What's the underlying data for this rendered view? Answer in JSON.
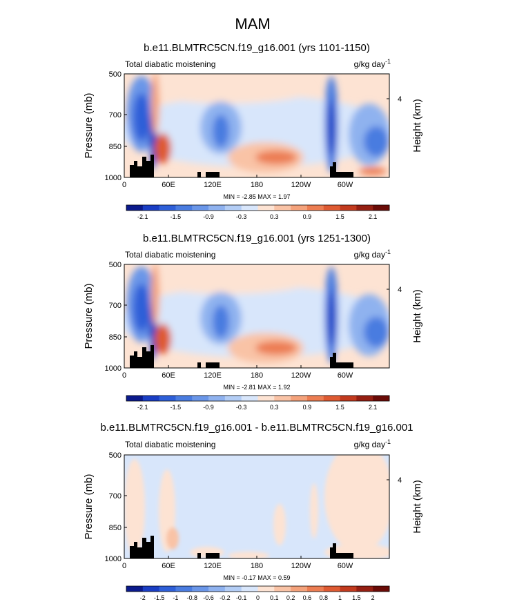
{
  "figure": {
    "title": "MAM"
  },
  "chart_data": [
    {
      "type": "heatmap",
      "title": "b.e11.BLMTRC5CN.f19_g16.001 (yrs 1101-1150)",
      "left_label": "Total diabatic moistening",
      "units": "g/kg day",
      "units_exp": "-1",
      "xlabel": "",
      "ylabel": "Pressure (mb)",
      "y2label": "Height (km)",
      "x_ticks": [
        "0",
        "60E",
        "120E",
        "180",
        "120W",
        "60W"
      ],
      "y_ticks": [
        "500",
        "700",
        "850",
        "1000"
      ],
      "y2_ticks": [
        "4"
      ],
      "ylim": [
        1000,
        500
      ],
      "stats": "MIN = -2.85  MAX = 1.97",
      "colorbar_labels": [
        "-2.1",
        "-1.5",
        "-0.9",
        "-0.3",
        "0.3",
        "0.9",
        "1.5",
        "2.1"
      ],
      "colorbar_colors": [
        "#0b1a8c",
        "#1a3ec4",
        "#2e5fd8",
        "#4a7ce0",
        "#6a96e8",
        "#8fb2ef",
        "#b3cdf5",
        "#d8e6fb",
        "#fde3d3",
        "#f9c3a6",
        "#f4a27b",
        "#ec7d52",
        "#de5a32",
        "#c23a1e",
        "#951f12",
        "#6a0b07"
      ]
    },
    {
      "type": "heatmap",
      "title": "b.e11.BLMTRC5CN.f19_g16.001 (yrs 1251-1300)",
      "left_label": "Total diabatic moistening",
      "units": "g/kg day",
      "units_exp": "-1",
      "xlabel": "",
      "ylabel": "Pressure (mb)",
      "y2label": "Height (km)",
      "x_ticks": [
        "0",
        "60E",
        "120E",
        "180",
        "120W",
        "60W"
      ],
      "y_ticks": [
        "500",
        "700",
        "850",
        "1000"
      ],
      "y2_ticks": [
        "4"
      ],
      "ylim": [
        1000,
        500
      ],
      "stats": "MIN = -2.81  MAX = 1.92",
      "colorbar_labels": [
        "-2.1",
        "-1.5",
        "-0.9",
        "-0.3",
        "0.3",
        "0.9",
        "1.5",
        "2.1"
      ],
      "colorbar_colors": [
        "#0b1a8c",
        "#1a3ec4",
        "#2e5fd8",
        "#4a7ce0",
        "#6a96e8",
        "#8fb2ef",
        "#b3cdf5",
        "#d8e6fb",
        "#fde3d3",
        "#f9c3a6",
        "#f4a27b",
        "#ec7d52",
        "#de5a32",
        "#c23a1e",
        "#951f12",
        "#6a0b07"
      ]
    },
    {
      "type": "heatmap",
      "title": "b.e11.BLMTRC5CN.f19_g16.001 - b.e11.BLMTRC5CN.f19_g16.001",
      "left_label": "Total diabatic moistening",
      "units": "g/kg day",
      "units_exp": "-1",
      "xlabel": "",
      "ylabel": "Pressure (mb)",
      "y2label": "Height (km)",
      "x_ticks": [
        "0",
        "60E",
        "120E",
        "180",
        "120W",
        "60W"
      ],
      "y_ticks": [
        "500",
        "700",
        "850",
        "1000"
      ],
      "y2_ticks": [
        "4"
      ],
      "ylim": [
        1000,
        500
      ],
      "stats": "MIN = -0.17  MAX =  0.59",
      "colorbar_labels": [
        "-2",
        "-1.5",
        "-1",
        "-0.8",
        "-0.6",
        "-0.2",
        "-0.1",
        "0",
        "0.1",
        "0.2",
        "0.6",
        "0.8",
        "1",
        "1.5",
        "2"
      ],
      "colorbar_colors": [
        "#0b1a8c",
        "#1a3ec4",
        "#2e5fd8",
        "#4a7ce0",
        "#6a96e8",
        "#8fb2ef",
        "#b3cdf5",
        "#d8e6fb",
        "#fde3d3",
        "#f9c3a6",
        "#f4a27b",
        "#ec7d52",
        "#de5a32",
        "#c23a1e",
        "#951f12",
        "#6a0b07"
      ]
    }
  ]
}
